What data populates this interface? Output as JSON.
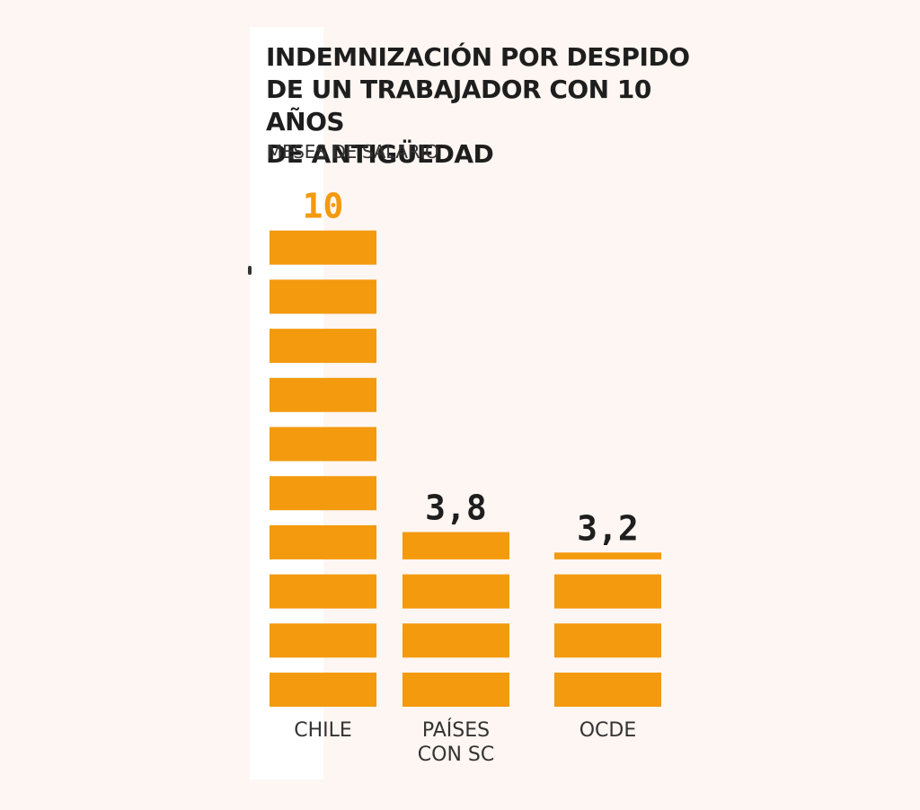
{
  "title_lines": [
    "INDEMNIZACIÓN POR DESPIDO",
    "DE UN TRABAJADOR CON 10 AÑOS",
    "DE ANTIGÜEDAD"
  ],
  "subtitle": "MESES DE SALARIO",
  "colors": {
    "bar": "#f39a0e",
    "highlight_label": "#f39a0e",
    "label": "#1e1e1e",
    "background": "#fdf6f2"
  },
  "chart_data": {
    "type": "bar",
    "title": "INDEMNIZACIÓN POR DESPIDO DE UN TRABAJADOR CON 10 AÑOS DE ANTIGÜEDAD",
    "ylabel": "MESES DE SALARIO",
    "categories": [
      [
        "CHILE"
      ],
      [
        "PAÍSES",
        "CON SC"
      ],
      [
        "OCDE"
      ]
    ],
    "values": [
      10,
      3.8,
      3.2
    ],
    "value_labels": [
      "10",
      "3,8",
      "3,2"
    ],
    "highlight_index": 0,
    "ylim": [
      0,
      10
    ],
    "grid": false
  }
}
